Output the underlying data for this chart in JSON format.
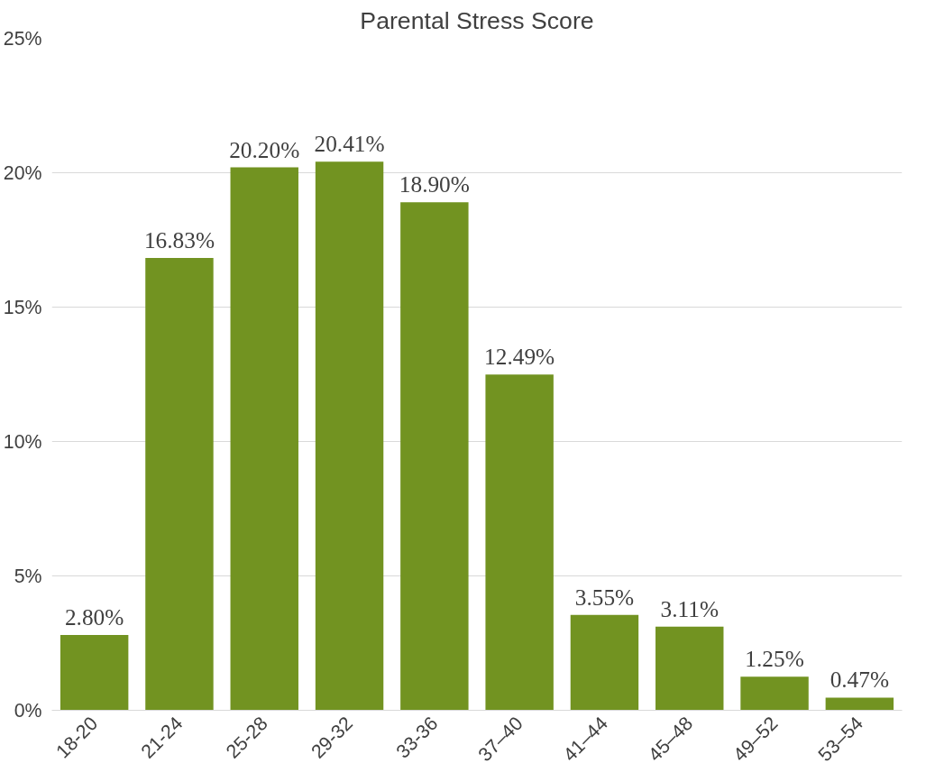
{
  "chart_data": {
    "type": "bar",
    "title": "Parental Stress Score",
    "categories": [
      "18-20",
      "21-24",
      "25-28",
      "29-32",
      "33-36",
      "37–40",
      "41–44",
      "45–48",
      "49–52",
      "53–54"
    ],
    "values": [
      2.8,
      16.83,
      20.2,
      20.41,
      18.9,
      12.49,
      3.55,
      3.11,
      1.25,
      0.47
    ],
    "value_labels": [
      "2.80%",
      "16.83%",
      "20.20%",
      "20.41%",
      "18.90%",
      "12.49%",
      "3.55%",
      "3.11%",
      "1.25%",
      "0.47%"
    ],
    "color": "#729321",
    "ylim": [
      0,
      25
    ],
    "yticks": [
      {
        "value": 0,
        "label": "0%"
      },
      {
        "value": 5,
        "label": "5%"
      },
      {
        "value": 10,
        "label": "10%"
      },
      {
        "value": 15,
        "label": "15%"
      },
      {
        "value": 20,
        "label": "20%"
      },
      {
        "value": 25,
        "label": "25%"
      }
    ],
    "grid": "y"
  }
}
